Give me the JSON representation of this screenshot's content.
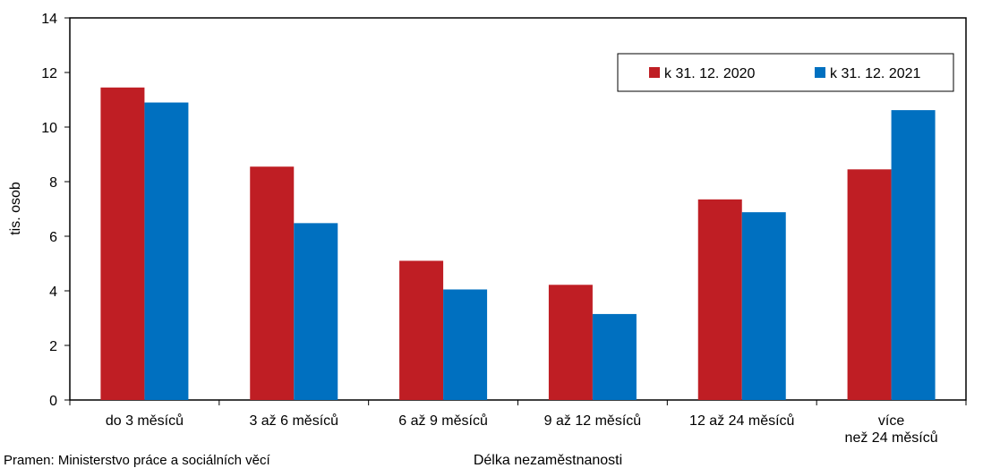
{
  "chart_data": {
    "type": "bar",
    "categories": [
      [
        "do 3 měsíců"
      ],
      [
        "3 až 6 měsíců"
      ],
      [
        "6 až 9 měsíců"
      ],
      [
        "9 až 12 měsíců"
      ],
      [
        "12 až 24 měsíců"
      ],
      [
        "více",
        "než 24 měsíců"
      ]
    ],
    "series": [
      {
        "name": "k 31. 12. 2020",
        "color": "#bf1e24",
        "values": [
          11.45,
          8.55,
          5.1,
          4.22,
          7.35,
          8.45
        ]
      },
      {
        "name": "k 31. 12. 2021",
        "color": "#0070c0",
        "values": [
          10.9,
          6.48,
          4.05,
          3.15,
          6.88,
          10.62
        ]
      }
    ],
    "xlabel": "Délka nezaměstnanosti",
    "ylabel": "tis. osob",
    "ylim": [
      0,
      14
    ],
    "yticks": [
      0,
      2,
      4,
      6,
      8,
      10,
      12,
      14
    ],
    "grid": false,
    "legend_position": "top-right"
  },
  "source_text": "Pramen: Ministerstvo práce a sociálních věcí"
}
